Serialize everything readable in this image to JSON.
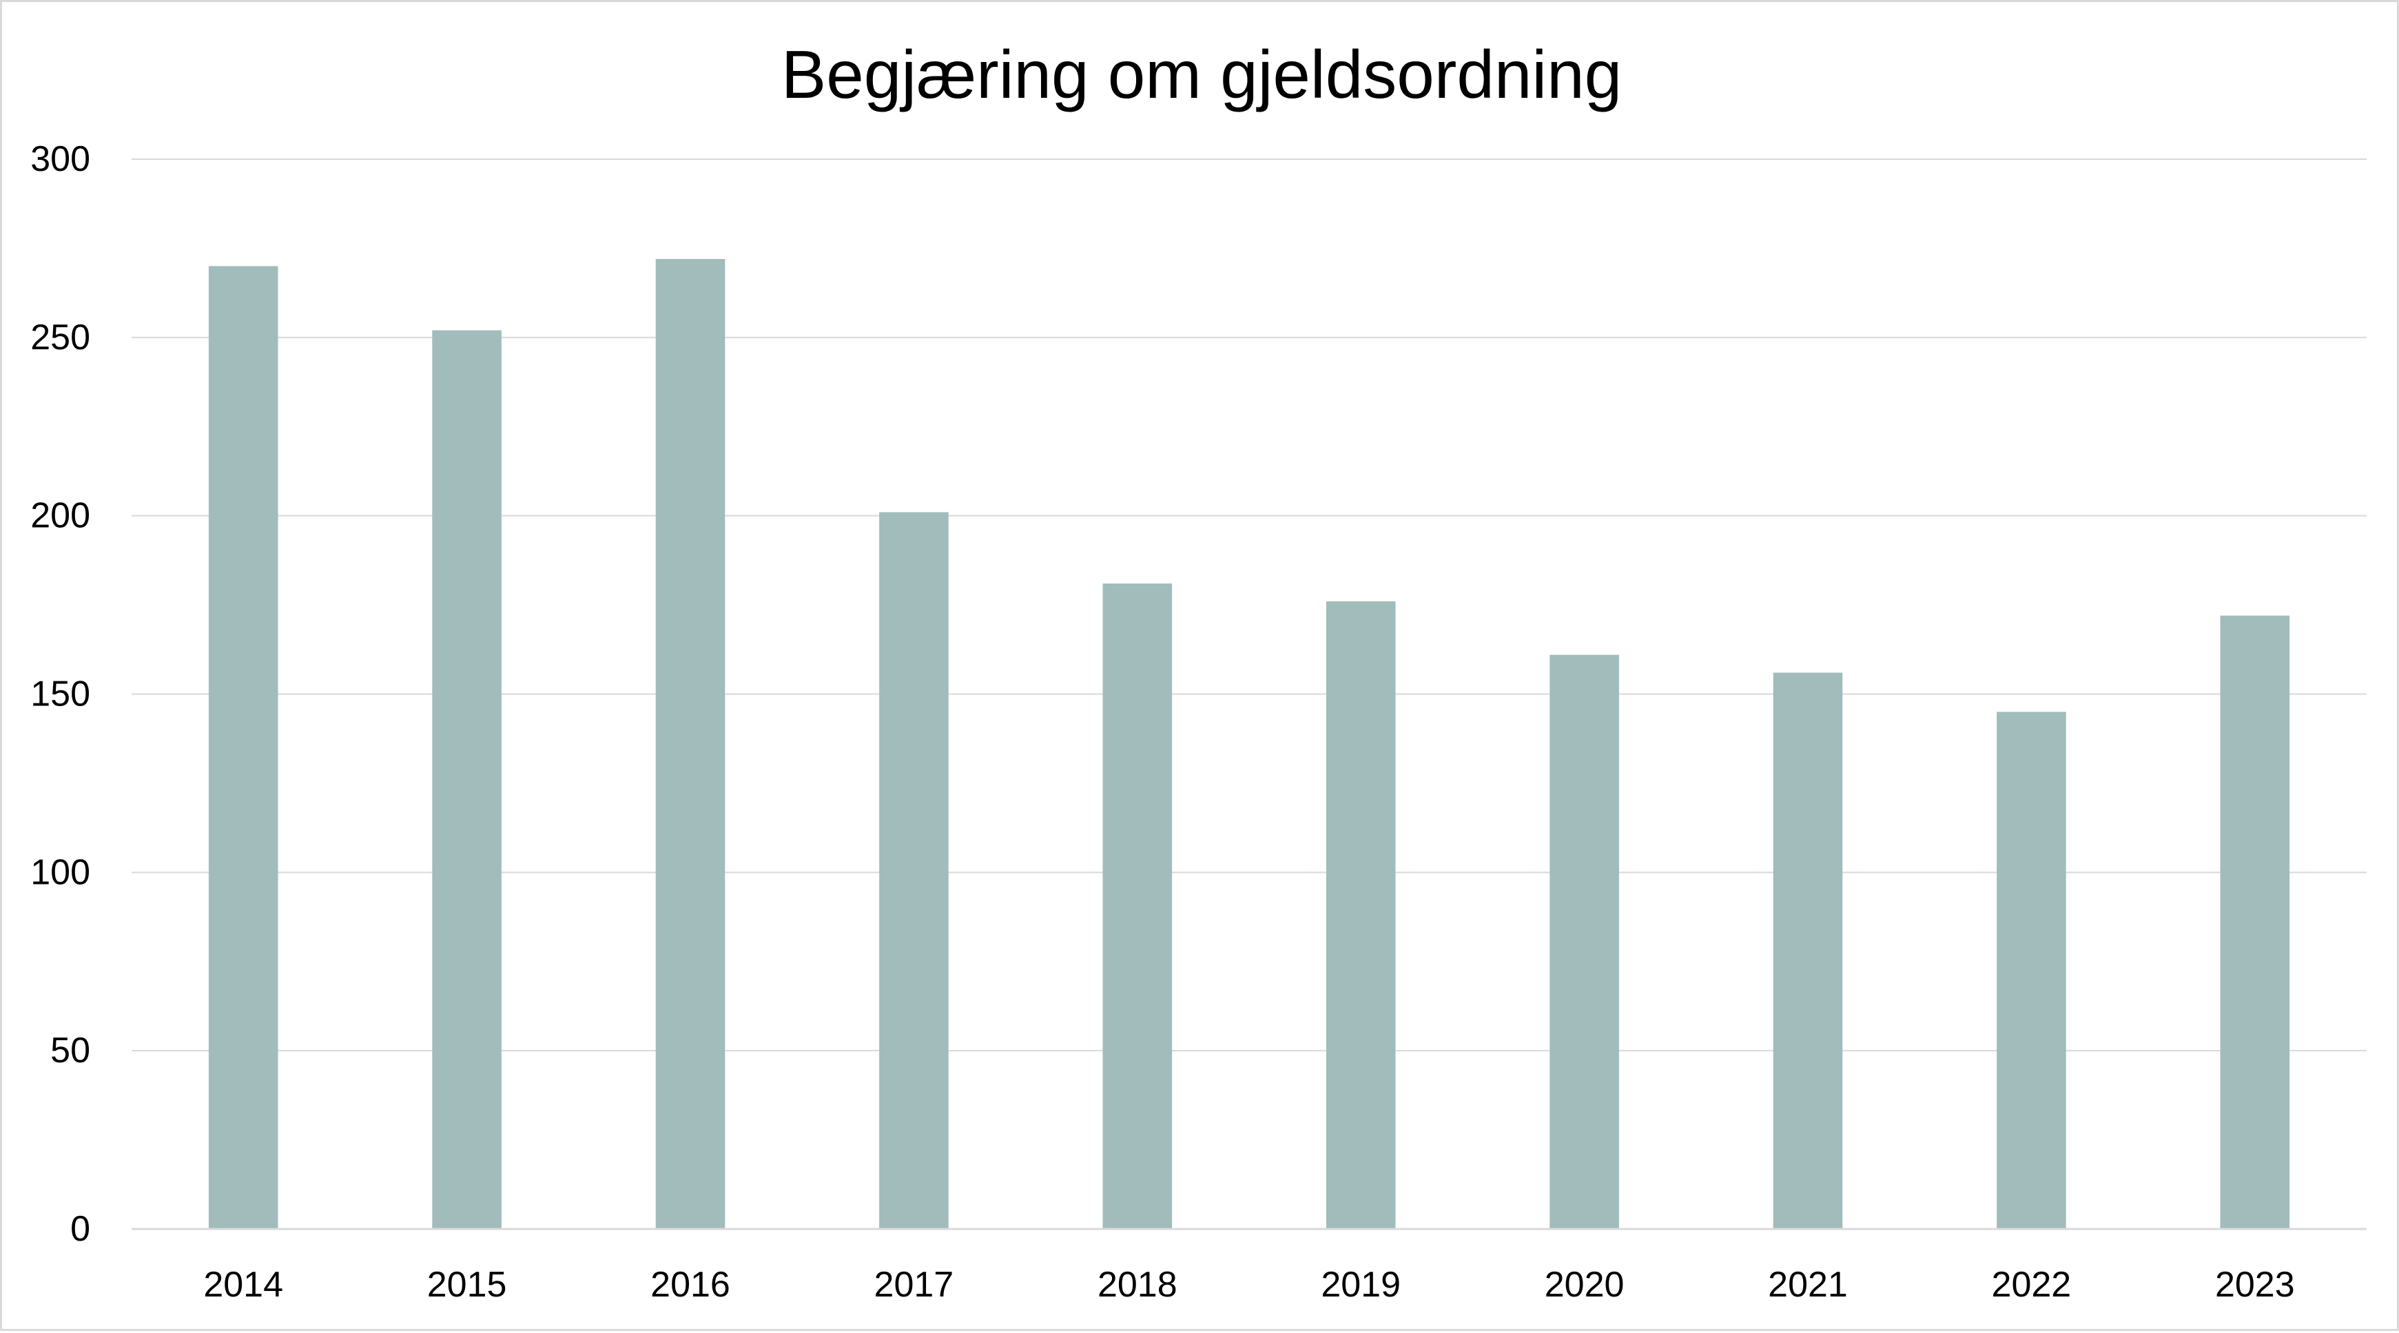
{
  "chart_data": {
    "type": "bar",
    "title": "Begjæring om gjeldsordning",
    "xlabel": "",
    "ylabel": "",
    "categories": [
      "2014",
      "2015",
      "2016",
      "2017",
      "2018",
      "2019",
      "2020",
      "2021",
      "2022",
      "2023"
    ],
    "values": [
      270,
      252,
      272,
      201,
      181,
      176,
      161,
      156,
      145,
      172
    ],
    "ylim": [
      0,
      300
    ],
    "yticks": [
      "0",
      "50",
      "100",
      "150",
      "200",
      "250",
      "300"
    ],
    "grid": true,
    "legend": "none",
    "colors": {
      "bar": "#a2bbbb",
      "grid": "#d9d9d9",
      "axis": "#d9d9d9"
    }
  }
}
